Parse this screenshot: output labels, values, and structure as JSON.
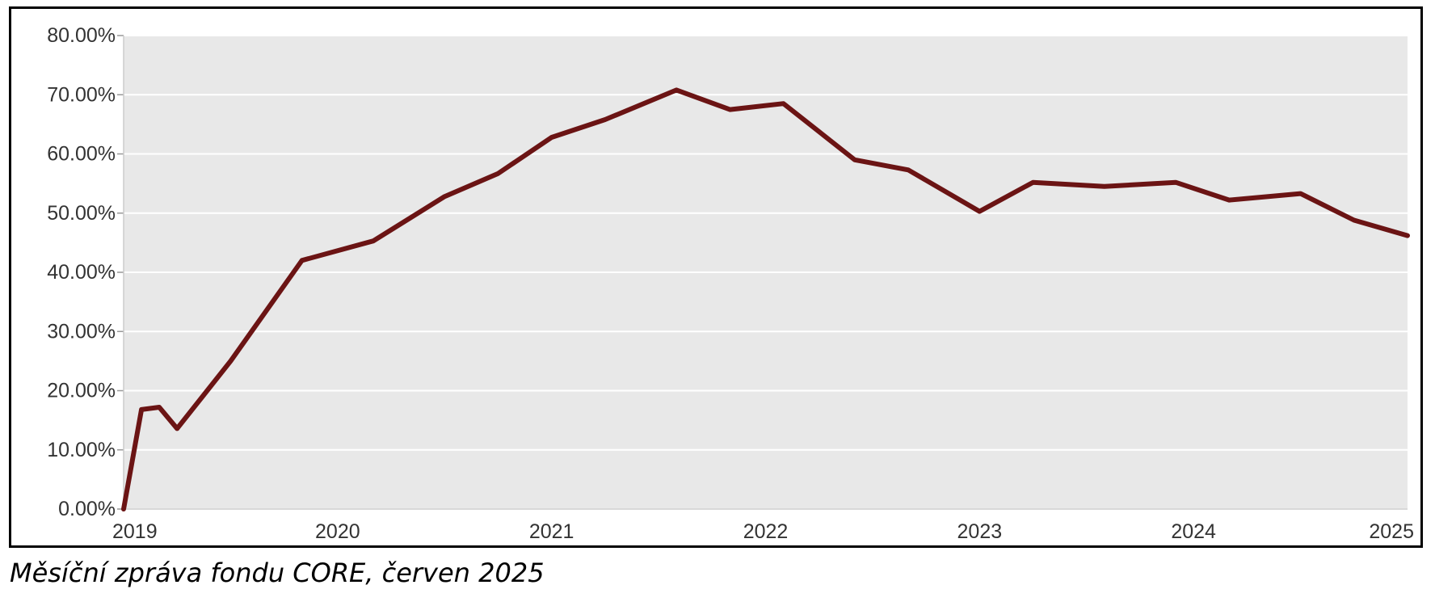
{
  "caption": "Měsíční zpráva fondu CORE, červen 2025",
  "colors": {
    "line": "#6b1414",
    "plot_background": "#e8e8e8",
    "gridline": "#ffffff",
    "frame": "#000000",
    "tick_text": "#333333"
  },
  "chart_data": {
    "type": "line",
    "title": "",
    "xlabel": "",
    "ylabel": "",
    "x_ticks": [
      "2019",
      "2020",
      "2021",
      "2022",
      "2023",
      "2024",
      "2025"
    ],
    "y_ticks": [
      "0.00%",
      "10.00%",
      "20.00%",
      "30.00%",
      "40.00%",
      "50.00%",
      "60.00%",
      "70.00%",
      "80.00%"
    ],
    "xlim": [
      "2019-01",
      "2025-01"
    ],
    "ylim": [
      0,
      80
    ],
    "grid": true,
    "legend": "none",
    "series": [
      {
        "values": [
          {
            "x": "2019-01",
            "y": 0.0
          },
          {
            "x": "2019-02",
            "y": 16.8
          },
          {
            "x": "2019-03",
            "y": 17.2
          },
          {
            "x": "2019-04",
            "y": 13.6
          },
          {
            "x": "2019-07",
            "y": 25.0
          },
          {
            "x": "2019-11",
            "y": 42.0
          },
          {
            "x": "2020-03",
            "y": 45.3
          },
          {
            "x": "2020-07",
            "y": 52.8
          },
          {
            "x": "2020-10",
            "y": 56.7
          },
          {
            "x": "2021-01",
            "y": 62.8
          },
          {
            "x": "2021-04",
            "y": 65.8
          },
          {
            "x": "2021-08",
            "y": 70.8
          },
          {
            "x": "2021-11",
            "y": 67.5
          },
          {
            "x": "2022-02",
            "y": 68.5
          },
          {
            "x": "2022-06",
            "y": 59.0
          },
          {
            "x": "2022-09",
            "y": 57.3
          },
          {
            "x": "2023-01",
            "y": 50.3
          },
          {
            "x": "2023-04",
            "y": 55.2
          },
          {
            "x": "2023-08",
            "y": 54.5
          },
          {
            "x": "2023-12",
            "y": 55.2
          },
          {
            "x": "2024-03",
            "y": 52.2
          },
          {
            "x": "2024-07",
            "y": 53.3
          },
          {
            "x": "2024-10",
            "y": 48.8
          },
          {
            "x": "2025-01",
            "y": 46.2
          }
        ]
      }
    ]
  }
}
